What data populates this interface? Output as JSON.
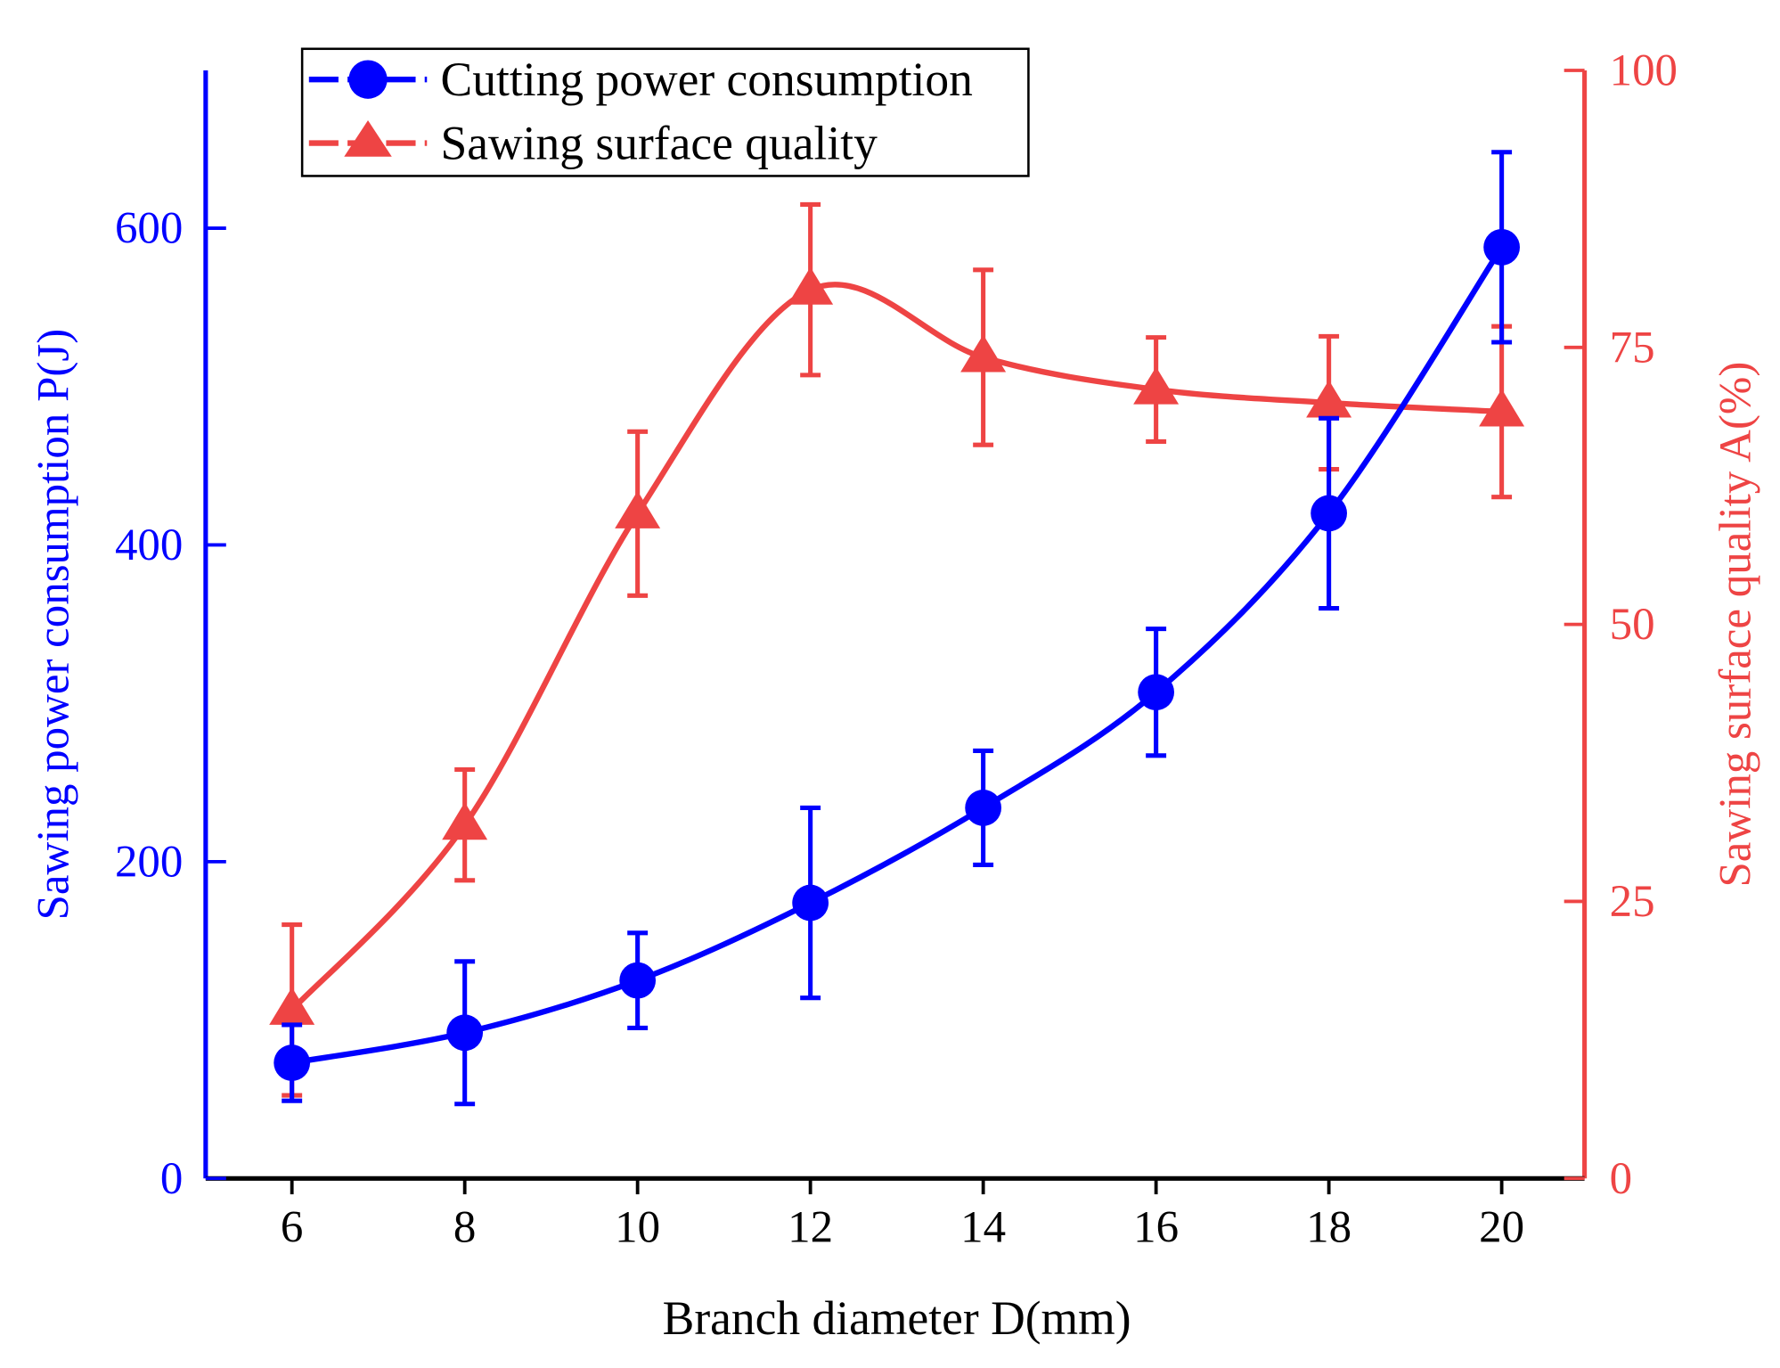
{
  "chart_data": {
    "type": "line",
    "xlabel": "Branch diameter D(mm)",
    "ylabel": "Sawing power consumption P(J)",
    "y2label": "Sawing surface quality A(%)",
    "x": [
      6,
      8,
      10,
      12,
      14,
      16,
      18,
      20
    ],
    "xlim": [
      5,
      21
    ],
    "ylim": [
      0,
      700
    ],
    "y2lim": [
      0,
      100
    ],
    "xticks": [
      "6",
      "8",
      "10",
      "12",
      "14",
      "16",
      "18",
      "20"
    ],
    "yticks": [
      "0",
      "200",
      "400",
      "600"
    ],
    "y2ticks": [
      "0",
      "25",
      "50",
      "75",
      "100"
    ],
    "legend_position": "top-left",
    "grid": false,
    "series": [
      {
        "name": "Cutting power consumption",
        "axis": "left",
        "color": "#0000FF",
        "marker": "circle",
        "values": [
          73,
          92,
          125,
          174,
          234,
          307,
          420,
          588
        ],
        "errors": [
          24,
          45,
          30,
          60,
          36,
          40,
          60,
          60
        ]
      },
      {
        "name": "Sawing surface quality",
        "axis": "right",
        "color": "#EE4444",
        "marker": "triangle",
        "values": [
          15.2,
          31.9,
          60,
          80.2,
          74.1,
          71.2,
          70,
          69.2
        ],
        "errors": [
          7.7,
          5,
          7.4,
          7.7,
          7.9,
          4.7,
          6,
          7.7
        ]
      }
    ]
  }
}
